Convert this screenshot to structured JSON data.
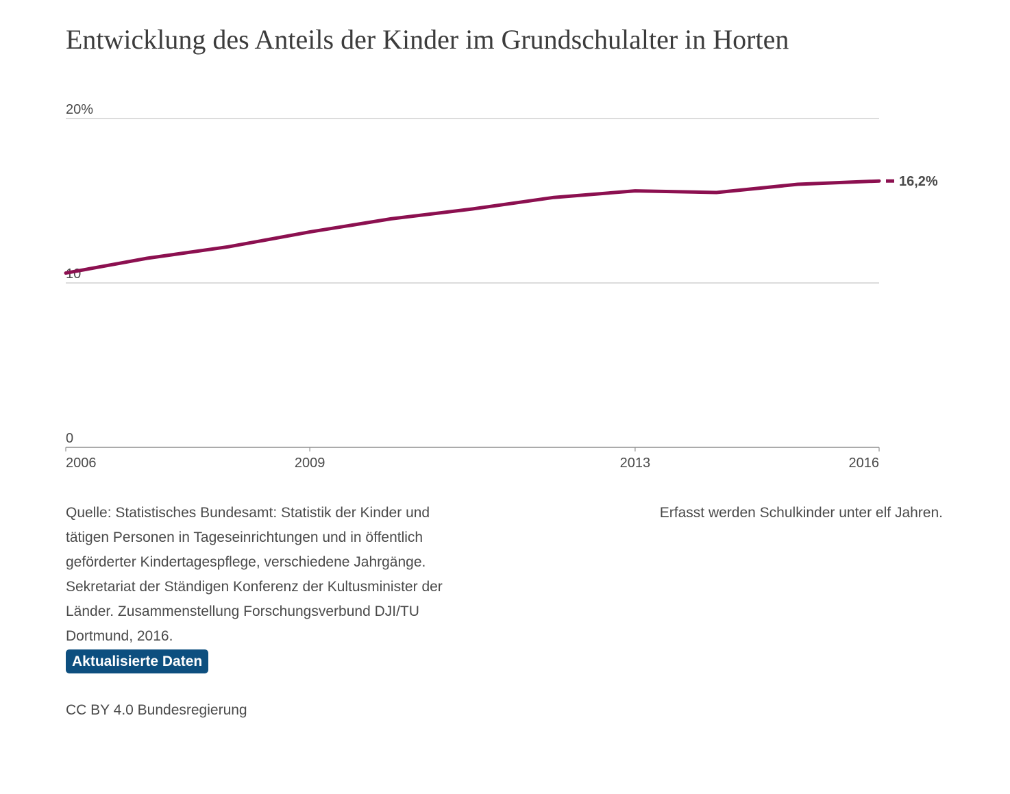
{
  "title": "Entwicklung des Anteils der Kinder im Grundschulalter in Horten",
  "chart_data": {
    "type": "line",
    "x": [
      2006,
      2007,
      2008,
      2009,
      2010,
      2011,
      2012,
      2013,
      2014,
      2015,
      2016
    ],
    "series": [
      {
        "values": [
          10.6,
          11.5,
          12.2,
          13.1,
          13.9,
          14.5,
          15.2,
          15.6,
          15.5,
          16.0,
          16.2
        ],
        "color": "#8c1050",
        "end_label": "16,2%"
      }
    ],
    "xlim": [
      2006,
      2016
    ],
    "ylim": [
      0,
      20
    ],
    "x_ticks": [
      2006,
      2009,
      2013,
      2016
    ],
    "x_tick_labels": [
      "2006",
      "2009",
      "2013",
      "2016"
    ],
    "y_ticks": [
      0,
      10,
      20
    ],
    "y_tick_labels": [
      "0",
      "10",
      "20%"
    ],
    "grid": "horizontal",
    "legend": "none"
  },
  "footer": {
    "source_lines": [
      "Quelle: Statistisches Bundesamt: Statistik der Kinder und",
      "tätigen Personen in Tageseinrichtungen und in öffentlich",
      "geförderter Kindertagespflege, verschiedene Jahrgänge.",
      "Sekretariat der Ständigen Konferenz der Kultusminister der",
      "Länder. Zusammenstellung Forschungsverbund DJI/TU",
      "Dortmund, 2016."
    ],
    "note": "Erfasst werden Schulkinder unter elf Jahren.",
    "update_button_label": "Aktualisierte Daten",
    "license": "CC BY 4.0 Bundesregierung"
  }
}
